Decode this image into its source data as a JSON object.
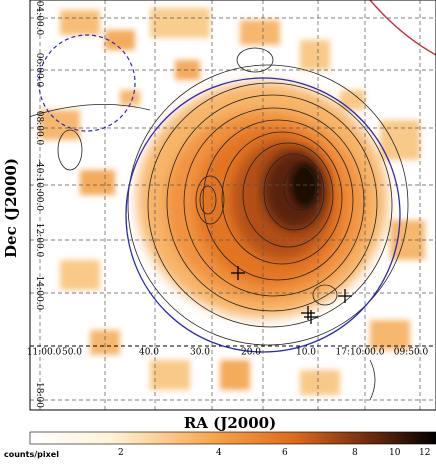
{
  "axes": {
    "xlabel": "RA (J2000)",
    "ylabel": "Dec (J2000)",
    "ra_ticks": [
      "11:00.0",
      "50.0",
      "40.0",
      "30.0",
      "20.0",
      "10.0",
      "17:10:00.0",
      "09:50.0"
    ],
    "dec_ticks": [
      "04:00.0",
      "06:00.0",
      "08:00.0",
      "-40:10:00.0",
      "12:00.0",
      "14:00.0",
      "18:00"
    ]
  },
  "colorbar": {
    "unit": "counts/pixel",
    "ticks": [
      "2",
      "4",
      "6",
      "8",
      "10",
      "12"
    ]
  },
  "colors": {
    "circle": "#2a2ab8",
    "contour": "#222222",
    "grid": "#555555",
    "edge_arc": "#c0303a"
  }
}
